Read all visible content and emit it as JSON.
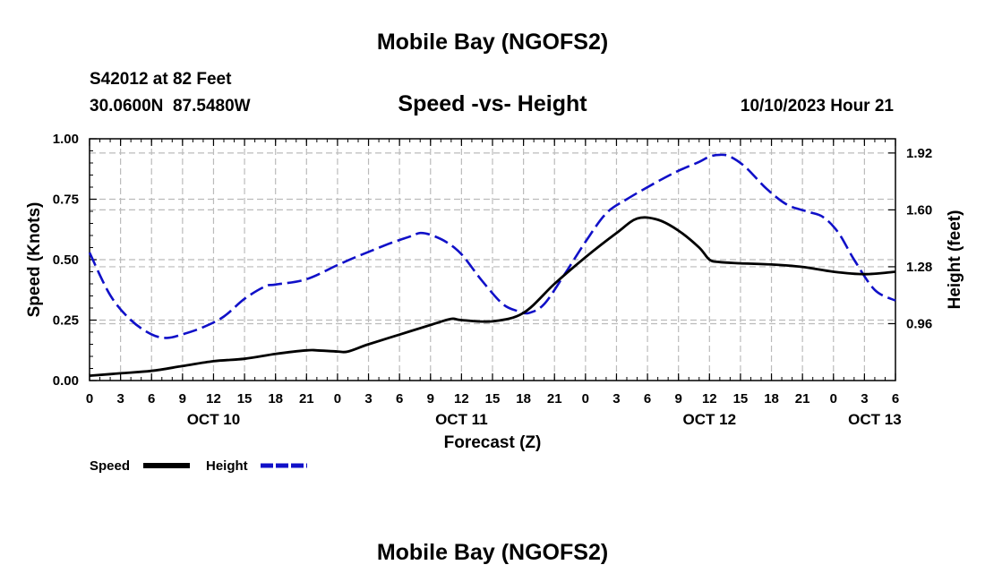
{
  "header": {
    "title": "Mobile Bay (NGOFS2)",
    "station_line": "S42012 at 82 Feet",
    "coords_line": "30.0600N  87.5480W",
    "chart_title": "Speed -vs- Height",
    "timestamp": "10/10/2023 Hour 21"
  },
  "footer": {
    "title": "Mobile Bay (NGOFS2)"
  },
  "legend": {
    "speed_label": "Speed",
    "height_label": "Height"
  },
  "colors": {
    "speed": "#000000",
    "height": "#1010c8",
    "grid": "#bbbbbb"
  },
  "chart_data": {
    "type": "line",
    "title": "Speed -vs- Height",
    "xlabel": "Forecast (Z)",
    "ylabel": "Speed (Knots)",
    "ylabel_right": "Height (feet)",
    "x_units": "hours since Oct 10 00Z",
    "xlim": [
      0,
      78
    ],
    "ylim": [
      0,
      1
    ],
    "ylim_right": [
      0.64,
      2.0
    ],
    "y_ticks": [
      "0.00",
      "0.25",
      "0.50",
      "0.75",
      "1.00"
    ],
    "y_tick_values": [
      0,
      0.25,
      0.5,
      0.75,
      1.0
    ],
    "y_right_ticks": [
      "0.96",
      "1.28",
      "1.60",
      "1.92"
    ],
    "y_right_tick_values": [
      0.96,
      1.28,
      1.6,
      1.92
    ],
    "x_ticks": [
      {
        "hour": 0,
        "label": "0"
      },
      {
        "hour": 3,
        "label": "3"
      },
      {
        "hour": 6,
        "label": "6"
      },
      {
        "hour": 9,
        "label": "9"
      },
      {
        "hour": 12,
        "label": "12"
      },
      {
        "hour": 15,
        "label": "15"
      },
      {
        "hour": 18,
        "label": "18"
      },
      {
        "hour": 21,
        "label": "21"
      },
      {
        "hour": 24,
        "label": "0"
      },
      {
        "hour": 27,
        "label": "3"
      },
      {
        "hour": 30,
        "label": "6"
      },
      {
        "hour": 33,
        "label": "9"
      },
      {
        "hour": 36,
        "label": "12"
      },
      {
        "hour": 39,
        "label": "15"
      },
      {
        "hour": 42,
        "label": "18"
      },
      {
        "hour": 45,
        "label": "21"
      },
      {
        "hour": 48,
        "label": "0"
      },
      {
        "hour": 51,
        "label": "3"
      },
      {
        "hour": 54,
        "label": "6"
      },
      {
        "hour": 57,
        "label": "9"
      },
      {
        "hour": 60,
        "label": "12"
      },
      {
        "hour": 63,
        "label": "15"
      },
      {
        "hour": 66,
        "label": "18"
      },
      {
        "hour": 69,
        "label": "21"
      },
      {
        "hour": 72,
        "label": "0"
      },
      {
        "hour": 75,
        "label": "3"
      },
      {
        "hour": 78,
        "label": "6"
      }
    ],
    "date_labels": [
      {
        "hour": 12,
        "label": "OCT 10"
      },
      {
        "hour": 36,
        "label": "OCT 11"
      },
      {
        "hour": 60,
        "label": "OCT 12"
      },
      {
        "hour": 76,
        "label": "OCT 13"
      }
    ],
    "series": [
      {
        "name": "Speed",
        "axis": "left",
        "style": "solid",
        "x": [
          0,
          3,
          6,
          9,
          12,
          15,
          18,
          21,
          22,
          24,
          25,
          27,
          30,
          33,
          35,
          36,
          39,
          42,
          45,
          48,
          51,
          53,
          55,
          57,
          59,
          60,
          61,
          63,
          66,
          69,
          72,
          75,
          78
        ],
        "values": [
          0.02,
          0.03,
          0.04,
          0.06,
          0.08,
          0.09,
          0.11,
          0.125,
          0.125,
          0.12,
          0.12,
          0.15,
          0.19,
          0.23,
          0.255,
          0.25,
          0.245,
          0.28,
          0.4,
          0.51,
          0.61,
          0.67,
          0.665,
          0.62,
          0.55,
          0.5,
          0.49,
          0.485,
          0.48,
          0.47,
          0.45,
          0.44,
          0.45
        ]
      },
      {
        "name": "Height",
        "axis": "right",
        "style": "dashed",
        "x": [
          0,
          2,
          4,
          6,
          7.5,
          9,
          11,
          13,
          15,
          17,
          18,
          21,
          24,
          26,
          29,
          31,
          32,
          33,
          34.5,
          36,
          38,
          40,
          41.5,
          42.5,
          44,
          46,
          48,
          50,
          52,
          55,
          57,
          59,
          60,
          61,
          62,
          63.5,
          65.5,
          67.5,
          69.5,
          71,
          72.5,
          74,
          76,
          78
        ],
        "values": [
          1.36,
          1.12,
          0.98,
          0.9,
          0.88,
          0.9,
          0.94,
          1.0,
          1.1,
          1.17,
          1.18,
          1.21,
          1.29,
          1.34,
          1.41,
          1.45,
          1.47,
          1.46,
          1.42,
          1.35,
          1.2,
          1.07,
          1.03,
          1.02,
          1.07,
          1.24,
          1.42,
          1.58,
          1.66,
          1.76,
          1.82,
          1.87,
          1.9,
          1.91,
          1.9,
          1.84,
          1.72,
          1.63,
          1.59,
          1.56,
          1.47,
          1.32,
          1.15,
          1.09
        ]
      }
    ]
  }
}
